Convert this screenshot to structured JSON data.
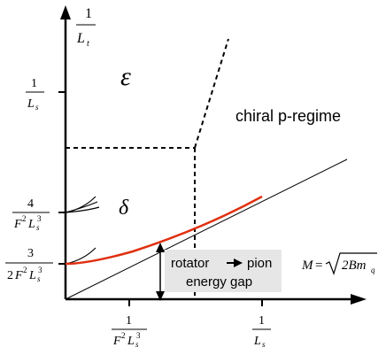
{
  "y_axis": {
    "top_label": {
      "num": "1",
      "den": "L",
      "den_sub": "t"
    },
    "tick_upper": {
      "num": "1",
      "den": "L",
      "den_sub": "s"
    },
    "tick_middle": {
      "num": "4",
      "den_pre": "F",
      "den_pre_sup": "2",
      "den": "L",
      "den_sub": "s",
      "den_sup": "3"
    },
    "tick_lower": {
      "num": "3",
      "den_coef": "2",
      "den_pre": "F",
      "den_pre_sup": "2",
      "den": "L",
      "den_sub": "s",
      "den_sup": "3"
    }
  },
  "x_axis": {
    "tick_left": {
      "num": "1",
      "den_pre": "F",
      "den_pre_sup": "2",
      "den": "L",
      "den_sub": "s",
      "den_sup": "3"
    },
    "tick_right": {
      "num": "1",
      "den": "L",
      "den_sub": "s"
    }
  },
  "regions": {
    "epsilon": "ε",
    "delta": "δ",
    "chiral": "chiral p-regime"
  },
  "gap_box": {
    "line1_left": "rotator",
    "line1_right": "pion",
    "line2": "energy gap"
  },
  "mass_formula": {
    "lhs": "M",
    "eq": "=",
    "radical": "2Bm",
    "radical_sub": "q"
  },
  "colors": {
    "axes": "#000000",
    "curve": "#e03010",
    "gap_box": "#e6e6e6"
  }
}
